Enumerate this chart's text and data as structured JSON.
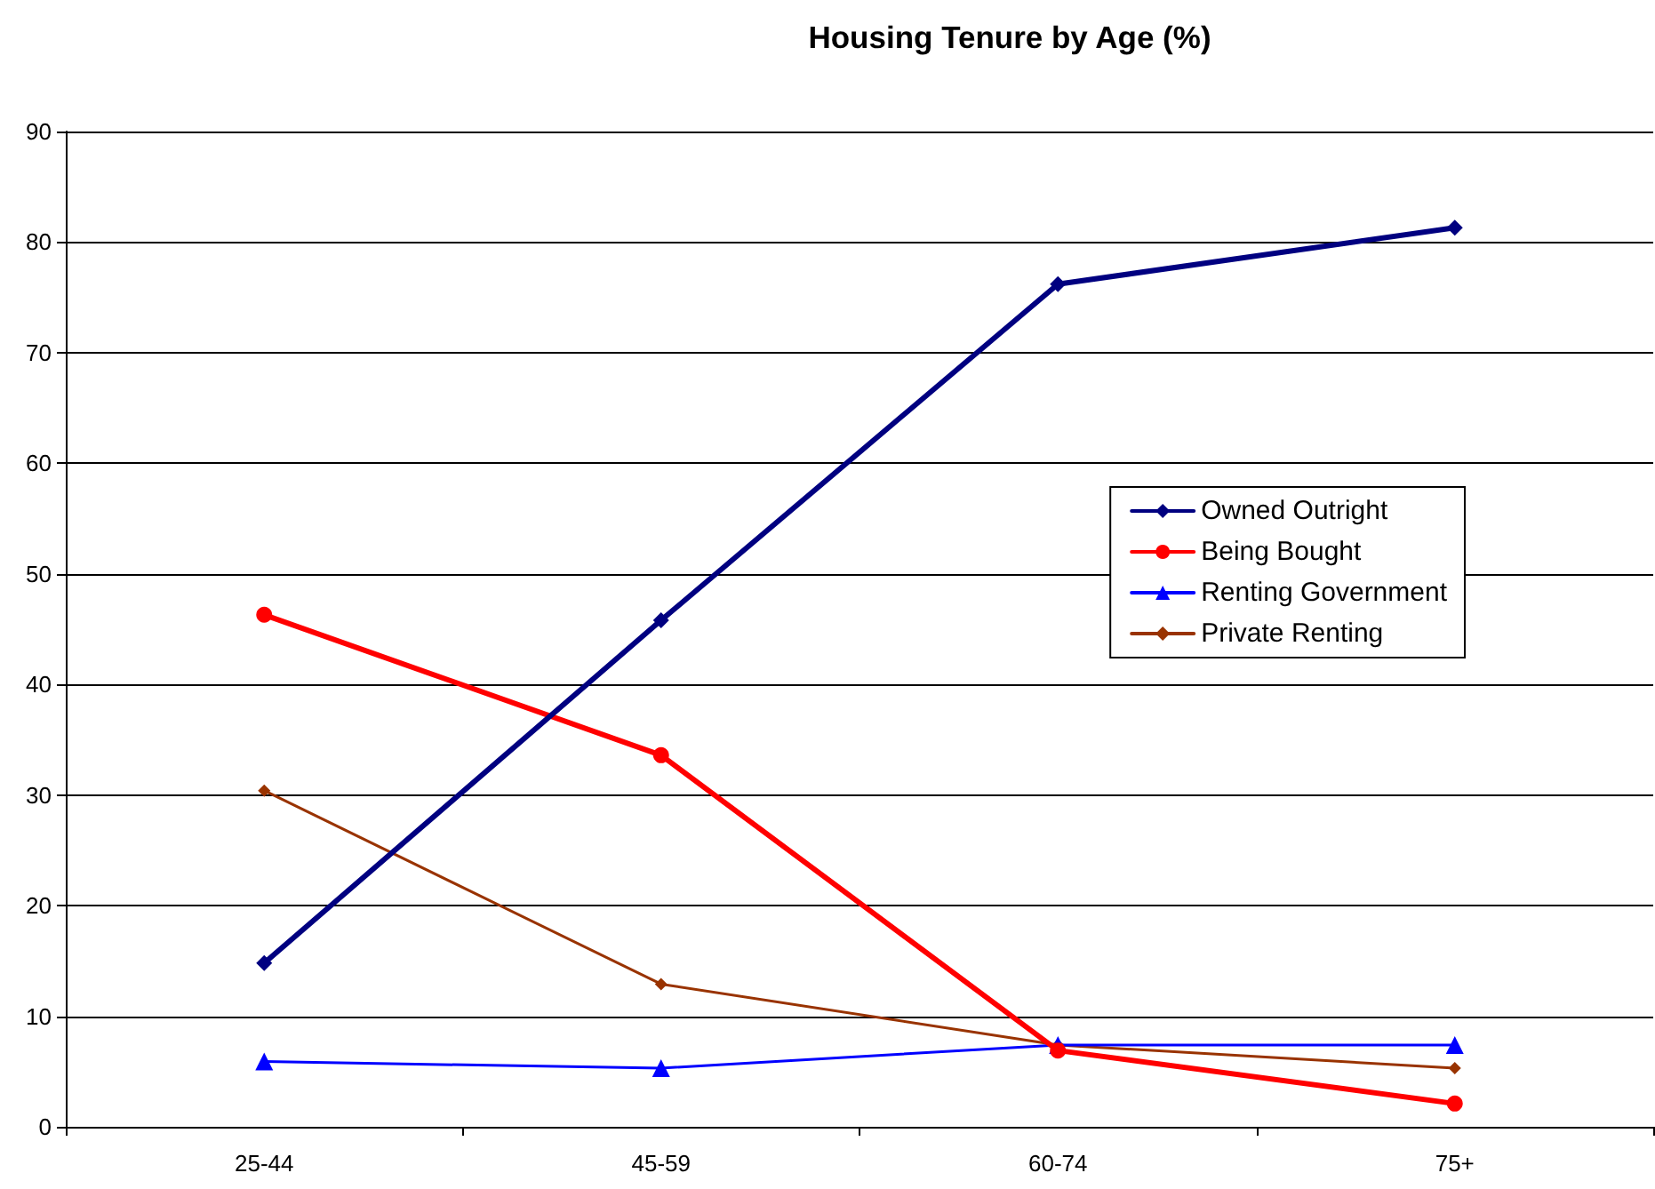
{
  "chart_data": {
    "type": "line",
    "title": "Housing Tenure by Age (%)",
    "categories": [
      "25-44",
      "45-59",
      "60-74",
      "75+"
    ],
    "series": [
      {
        "name": "Owned Outright",
        "color": "#000080",
        "marker": "diamond",
        "values": [
          14.8,
          45.8,
          76.2,
          81.3
        ]
      },
      {
        "name": "Being Bought",
        "color": "#ff0000",
        "marker": "circle",
        "values": [
          46.3,
          33.6,
          6.9,
          2.1
        ]
      },
      {
        "name": "Renting Government",
        "color": "#0000ff",
        "marker": "triangle",
        "values": [
          5.9,
          5.3,
          7.4,
          7.4
        ]
      },
      {
        "name": "Private Renting",
        "color": "#993300",
        "marker": "diamond",
        "values": [
          30.4,
          12.9,
          7.4,
          5.3
        ]
      }
    ],
    "ylim": [
      0,
      90
    ],
    "yticks": [
      0,
      10,
      20,
      30,
      40,
      50,
      60,
      70,
      80,
      90
    ],
    "grid": "y",
    "legend": "right",
    "line_style": "solid"
  }
}
